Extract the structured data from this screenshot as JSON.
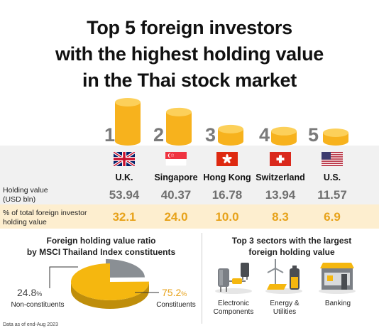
{
  "title": {
    "line1": "Top 5 foreign investors",
    "line2": "with the highest holding value",
    "line3": "in the Thai stock market"
  },
  "row_labels": {
    "holding_value_1": "Holding value",
    "holding_value_2": "(USD bln)",
    "pct_1": "% of total foreign investor",
    "pct_2": "holding value"
  },
  "chart_data": [
    {
      "type": "bar",
      "categories": [
        "U.K.",
        "Singapore",
        "Hong Kong",
        "Switzerland",
        "U.S."
      ],
      "ranks": [
        "1",
        "2",
        "3",
        "4",
        "5"
      ],
      "series": [
        {
          "name": "Holding value",
          "values": [
            53.94,
            40.37,
            16.78,
            13.94,
            11.57
          ]
        },
        {
          "name": "% of total foreign investor holding value",
          "values": [
            32.1,
            24.0,
            10.0,
            8.3,
            6.9
          ]
        }
      ],
      "value_labels": [
        "53.94",
        "40.37",
        "16.78",
        "13.94",
        "11.57"
      ],
      "pct_labels": [
        "32.1",
        "24.0",
        "10.0",
        "8.3",
        "6.9"
      ],
      "colors": {
        "coin": "#f7b21d",
        "coin_top": "#fcd05a",
        "value": "#6f6f6f",
        "pct": "#e7a21a"
      }
    },
    {
      "type": "pie",
      "title_1": "Foreign holding value ratio",
      "title_2": "by MSCI Thailand Index constituents",
      "slices": [
        {
          "name": "Non-constituents",
          "value": 24.8,
          "label": "24.8",
          "unit": "%",
          "color": "#8a8f94"
        },
        {
          "name": "Constituents",
          "value": 75.2,
          "label": "75.2",
          "unit": "%",
          "color": "#f5b70f"
        }
      ]
    }
  ],
  "sectors": {
    "title_1": "Top 3 sectors with the largest",
    "title_2": "foreign holding value",
    "items": [
      {
        "line1": "Electronic",
        "line2": "Components",
        "icon": "electronic-components-icon"
      },
      {
        "line1": "Energy &",
        "line2": "Utilities",
        "icon": "energy-utilities-icon"
      },
      {
        "line1": "Banking",
        "line2": "",
        "icon": "bank-icon"
      }
    ]
  },
  "footnote": "Data as of end-Aug 2023"
}
